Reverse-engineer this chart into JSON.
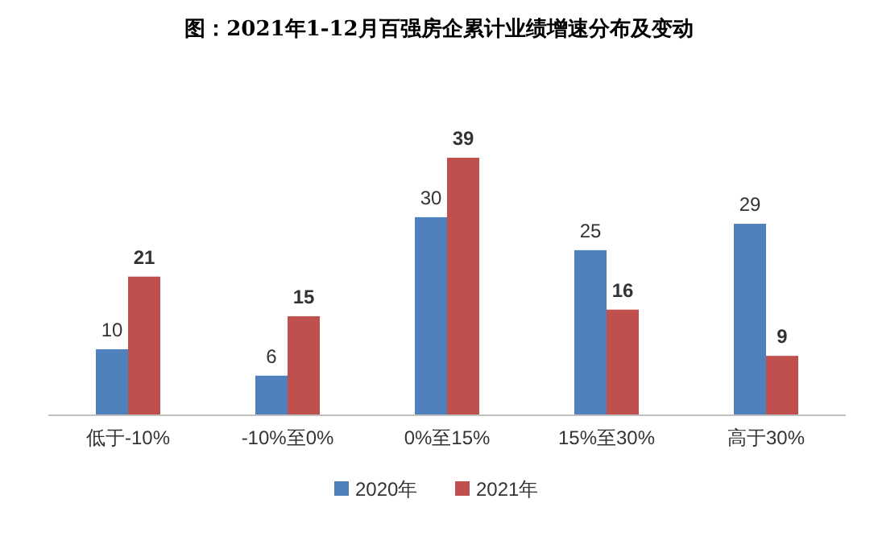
{
  "chart_data": {
    "type": "bar",
    "title": "图：2021年1-12月百强房企累计业绩增速分布及变动",
    "categories": [
      "低于-10%",
      "-10%至0%",
      "0%至15%",
      "15%至30%",
      "高于30%"
    ],
    "series": [
      {
        "name": "2020年",
        "color": "#4f81bd",
        "values": [
          10,
          6,
          30,
          25,
          29
        ]
      },
      {
        "name": "2021年",
        "color": "#c0504d",
        "values": [
          21,
          15,
          39,
          16,
          9
        ]
      }
    ],
    "data_labels": true,
    "legend": "bottom",
    "grid": false
  }
}
